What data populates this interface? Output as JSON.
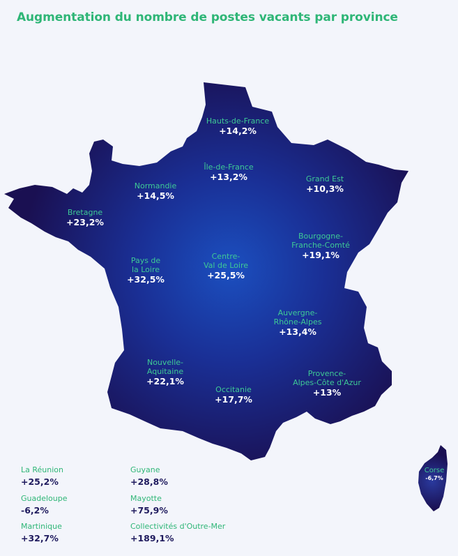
{
  "title": "Augmentation du nombre de postes vacants par province",
  "regions": {
    "hauts_de_france": {
      "name": "Hauts-de-France",
      "value": "+14,2%"
    },
    "ile_de_france": {
      "name": "Île-de-France",
      "value": "+13,2%"
    },
    "grand_est": {
      "name": "Grand Est",
      "value": "+10,3%"
    },
    "normandie": {
      "name": "Normandie",
      "value": "+14,5%"
    },
    "bretagne": {
      "name": "Bretagne",
      "value": "+23,2%"
    },
    "bourgogne": {
      "name_l1": "Bourgogne-",
      "name_l2": "Franche-Comté",
      "value": "+19,1%"
    },
    "pays_de_la_loire": {
      "name_l1": "Pays de",
      "name_l2": "la Loire",
      "value": "+32,5%"
    },
    "centre": {
      "name_l1": "Centre-",
      "name_l2": "Val de Loire",
      "value": "+25,5%"
    },
    "auvergne": {
      "name_l1": "Auvergne-",
      "name_l2": "Rhône-Alpes",
      "value": "+13,4%"
    },
    "nouvelle_aquitaine": {
      "name_l1": "Nouvelle-",
      "name_l2": "Aquitaine",
      "value": "+22,1%"
    },
    "occitanie": {
      "name": "Occitanie",
      "value": "+17,7%"
    },
    "paca": {
      "name_l1": "Provence-",
      "name_l2": "Alpes-Côte d'Azur",
      "value": "+13%"
    },
    "corse": {
      "name": "Corse",
      "value": "-6,7%"
    }
  },
  "overseas": {
    "la_reunion": {
      "name": "La Réunion",
      "value": "+25,2%"
    },
    "guadeloupe": {
      "name": "Guadeloupe",
      "value": "-6,2%"
    },
    "martinique": {
      "name": "Martinique",
      "value": "+32,7%"
    },
    "guyane": {
      "name": "Guyane",
      "value": "+28,8%"
    },
    "mayotte": {
      "name": "Mayotte",
      "value": "+75,9%"
    },
    "collectivites": {
      "name": "Collectivités d'Outre-Mer",
      "value": "+189,1%"
    }
  },
  "colors": {
    "title": "#2fb677",
    "region_label": "#3ec995",
    "region_value": "#ffffff",
    "map_center": "#1b4fbf",
    "map_edge": "#1a1052",
    "overseas_value": "#1f1b5e"
  }
}
